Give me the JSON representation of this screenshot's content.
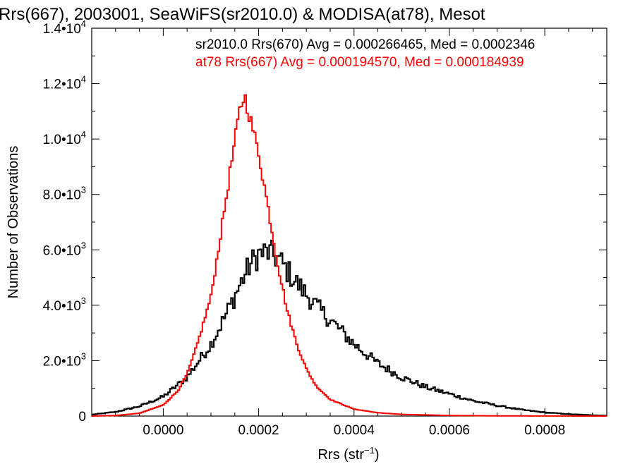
{
  "chart_data": {
    "type": "step-histogram",
    "title": "Rrs(667), 2003001, SeaWiFS(sr2010.0) & MODISA(at78), Mesot",
    "xlabel_main": "Rrs (str",
    "xlabel_sup": "−1",
    "xlabel_end": ")",
    "ylabel": "Number of Observations",
    "xlim": [
      -0.00015,
      0.00093
    ],
    "ylim": [
      0,
      14000
    ],
    "x_ticks": [
      0.0,
      0.0002,
      0.0004,
      0.0006,
      0.0008
    ],
    "x_tick_labels": [
      "0.0000",
      "0.0002",
      "0.0004",
      "0.0006",
      "0.0008"
    ],
    "y_ticks": [
      0,
      2000,
      4000,
      6000,
      8000,
      10000,
      12000,
      14000
    ],
    "y_tick_labels": [
      {
        "mant": "0",
        "exp": ""
      },
      {
        "mant": "2.0•10",
        "exp": "3"
      },
      {
        "mant": "4.0•10",
        "exp": "3"
      },
      {
        "mant": "6.0•10",
        "exp": "3"
      },
      {
        "mant": "8.0•10",
        "exp": "3"
      },
      {
        "mant": "1.0•10",
        "exp": "4"
      },
      {
        "mant": "1.2•10",
        "exp": "4"
      },
      {
        "mant": "1.4•10",
        "exp": "4"
      }
    ],
    "series": [
      {
        "label": "sr2010.0 Rrs(670) Avg = 0.000266465, Med = 0.0002346",
        "color": "#000000",
        "anchors_x": [
          -0.00015,
          -0.0001,
          -5e-05,
          0.0,
          5e-05,
          0.0001,
          0.00013,
          0.00016,
          0.00018,
          0.0002,
          0.00022,
          0.00024,
          0.00026,
          0.00028,
          0.0003,
          0.00033,
          0.00036,
          0.0004,
          0.00045,
          0.0005,
          0.00055,
          0.0006,
          0.00065,
          0.0007,
          0.00075,
          0.0008,
          0.00085,
          0.0009,
          0.00093
        ],
        "anchors_y": [
          50,
          150,
          350,
          700,
          1400,
          2600,
          3600,
          4700,
          5400,
          5850,
          5900,
          5700,
          5250,
          4800,
          4400,
          3800,
          3300,
          2600,
          1900,
          1400,
          1050,
          800,
          550,
          380,
          230,
          130,
          70,
          30,
          15
        ]
      },
      {
        "label": "at78 Rrs(667) Avg = 0.000194570, Med = 0.000184939",
        "color": "#ff0000",
        "anchors_x": [
          -0.00015,
          -0.0001,
          -5e-05,
          0.0,
          3e-05,
          5e-05,
          7e-05,
          0.0001,
          0.00012,
          0.00014,
          0.00016,
          0.00017,
          0.00018,
          0.0002,
          0.00022,
          0.00024,
          0.00026,
          0.00028,
          0.0003,
          0.00032,
          0.00035,
          0.0004,
          0.00045,
          0.0005,
          0.0006,
          0.0007,
          0.0008,
          0.00093
        ],
        "anchors_y": [
          0,
          20,
          100,
          400,
          900,
          1500,
          2500,
          4300,
          6500,
          8800,
          11000,
          11600,
          10900,
          9500,
          7500,
          5500,
          3800,
          2600,
          1700,
          1100,
          600,
          250,
          120,
          60,
          20,
          8,
          3,
          0
        ]
      }
    ]
  }
}
